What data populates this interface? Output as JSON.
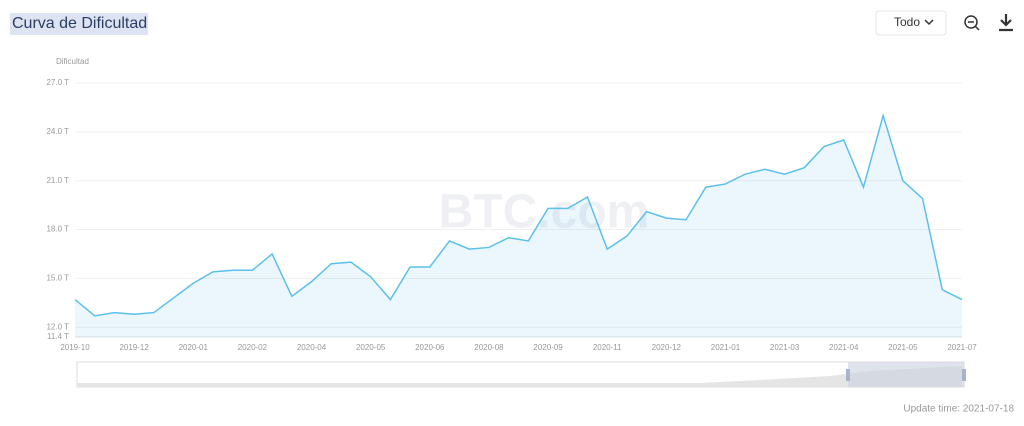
{
  "header": {
    "title": "Curva de Dificultad",
    "range_select": "Todo"
  },
  "chart_data": {
    "type": "line",
    "y_label": "Dificultad",
    "watermark": "BTC.com",
    "color": "#5bc0eb",
    "area": true,
    "grid": true,
    "categories": [
      "2019-10",
      null,
      null,
      "2019-12",
      null,
      null,
      "2020-01",
      null,
      null,
      "2020-02",
      null,
      null,
      "2020-04",
      null,
      null,
      "2020-05",
      null,
      null,
      "2020-06",
      null,
      null,
      "2020-08",
      null,
      null,
      "2020-09",
      null,
      null,
      "2020-11",
      null,
      null,
      "2020-12",
      null,
      null,
      "2021-01",
      null,
      null,
      "2021-03",
      null,
      null,
      "2021-04",
      null,
      null,
      "2021-05",
      null,
      null,
      "2021-07"
    ],
    "values": [
      13.7,
      12.7,
      12.9,
      12.8,
      12.9,
      13.8,
      14.7,
      15.4,
      15.5,
      15.5,
      16.5,
      13.9,
      14.8,
      15.9,
      16.0,
      15.1,
      13.7,
      15.7,
      15.7,
      17.3,
      16.8,
      16.9,
      17.5,
      17.3,
      19.3,
      19.3,
      20.0,
      16.8,
      17.6,
      19.1,
      18.7,
      18.6,
      20.6,
      20.8,
      21.4,
      21.7,
      21.4,
      21.8,
      23.1,
      23.5,
      20.6,
      25.0,
      21.0,
      19.9,
      14.3,
      13.7
    ],
    "ylim": [
      11.4,
      27
    ],
    "yticks": [
      {
        "value": 11.4,
        "label": "11.4 T"
      },
      {
        "value": 12,
        "label": "12.0 T"
      },
      {
        "value": 15,
        "label": "15.0 T"
      },
      {
        "value": 18,
        "label": "18.0 T"
      },
      {
        "value": 21,
        "label": "21.0 T"
      },
      {
        "value": 24,
        "label": "24.0 T"
      },
      {
        "value": 27,
        "label": "27.0 T"
      }
    ]
  },
  "footer": {
    "update_time": "Update time: 2021-07-18"
  }
}
